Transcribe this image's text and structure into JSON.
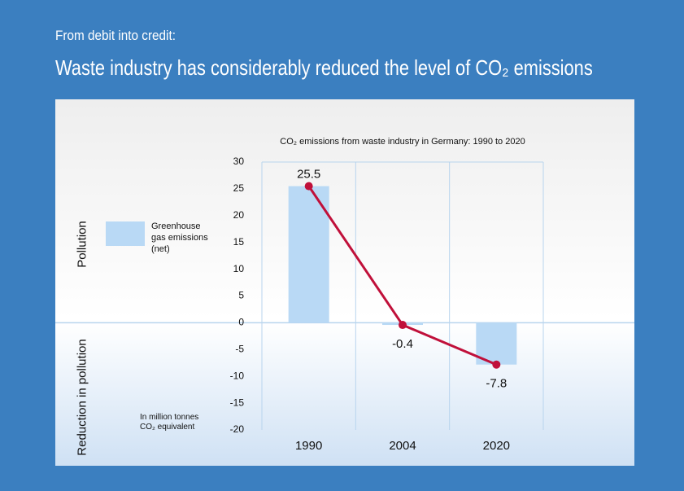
{
  "header": {
    "kicker": "From debit into credit:",
    "title": "Waste industry has considerably reduced the level of CO₂ emissions"
  },
  "chart_data": {
    "type": "bar",
    "title": "CO₂ emissions from waste industry in Germany: 1990 to 2020",
    "categories": [
      "1990",
      "2004",
      "2020"
    ],
    "series": [
      {
        "name": "Greenhouse gas emissions (net)",
        "color": "#b9d9f5",
        "values": [
          25.5,
          -0.4,
          -7.8
        ]
      }
    ],
    "line_overlay_color": "#c0103a",
    "ylim": [
      -20,
      30
    ],
    "yticks": [
      -20,
      -15,
      -10,
      -5,
      0,
      5,
      10,
      15,
      20,
      25,
      30
    ],
    "region_labels": [
      "Pollution",
      "Reduction in pollution"
    ],
    "unit_note": "In million tonnes CO₂ equivalent"
  }
}
